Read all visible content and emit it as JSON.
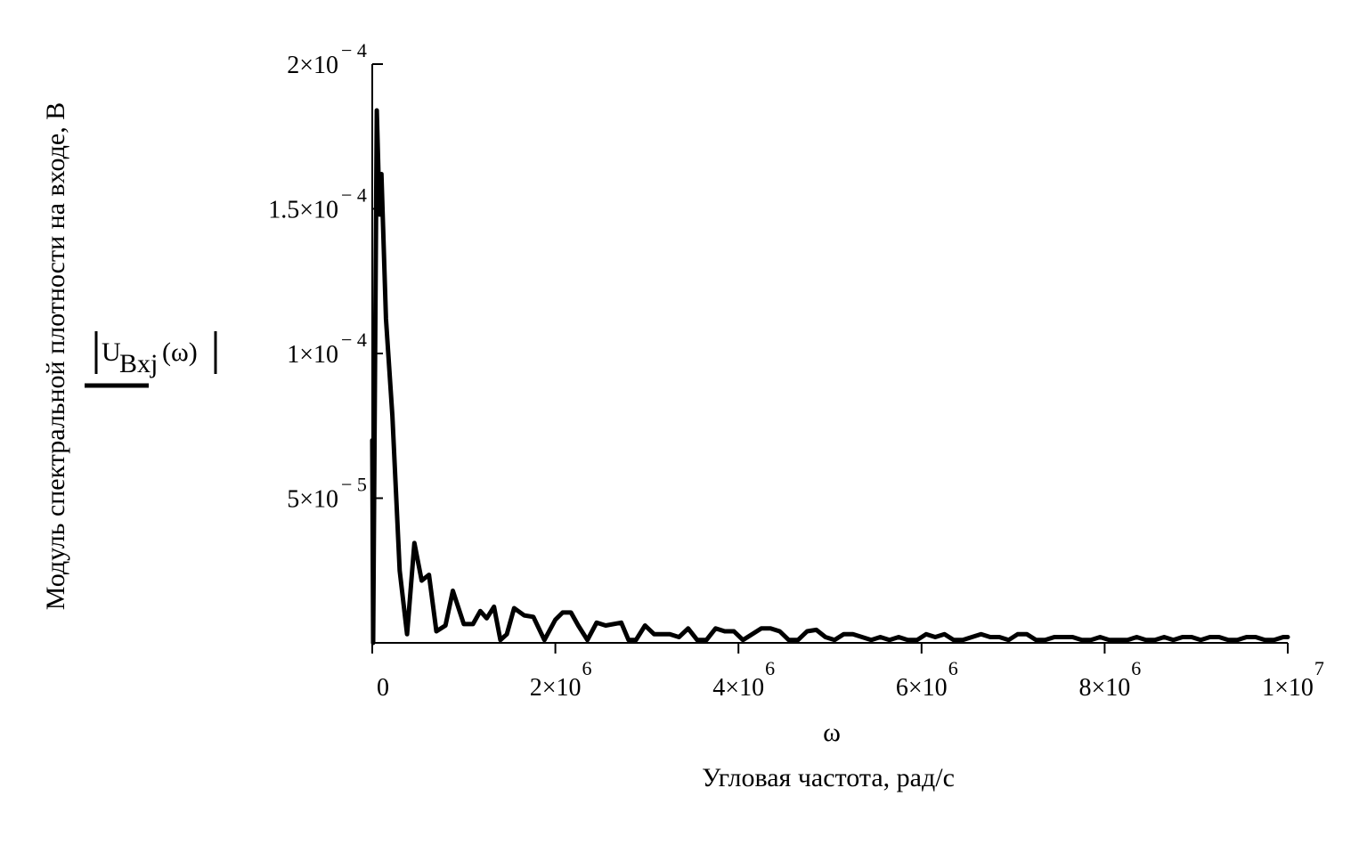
{
  "chart_data": {
    "type": "line",
    "title": "",
    "xlabel": "Угловая частота, рад/с",
    "x_symbol": "ω",
    "ylabel": "Модуль спектральной плотности на входе, В",
    "y_expression": {
      "base": "U",
      "subscript": "Bxj",
      "argument": "(ω)"
    },
    "xlim": [
      0,
      10000000
    ],
    "ylim": [
      0,
      0.0002
    ],
    "grid": false,
    "legend": "none",
    "line_color": "#000000",
    "x_ticks": [
      {
        "value": 0,
        "mantissa": "0",
        "exponent": ""
      },
      {
        "value": 2000000,
        "mantissa": "2×10",
        "exponent": "6"
      },
      {
        "value": 4000000,
        "mantissa": "4×10",
        "exponent": "6"
      },
      {
        "value": 6000000,
        "mantissa": "6×10",
        "exponent": "6"
      },
      {
        "value": 8000000,
        "mantissa": "8×10",
        "exponent": "6"
      },
      {
        "value": 10000000,
        "mantissa": "1×10",
        "exponent": "7"
      }
    ],
    "y_ticks": [
      {
        "value": 5e-05,
        "mantissa": "5×10",
        "exponent": "− 5"
      },
      {
        "value": 0.0001,
        "mantissa": "1×10",
        "exponent": "− 4"
      },
      {
        "value": 0.00015,
        "mantissa": "1.5×10",
        "exponent": "− 4"
      },
      {
        "value": 0.0002,
        "mantissa": "2×10",
        "exponent": "− 4"
      }
    ],
    "series": [
      {
        "x": [
          0,
          10000,
          50000,
          80000,
          100000,
          150000,
          220000,
          300000,
          380000,
          460000,
          540000,
          620000,
          700000,
          800000,
          880000,
          1000000,
          1100000,
          1180000,
          1250000,
          1330000,
          1400000,
          1470000,
          1550000,
          1660000,
          1760000,
          1880000,
          2000000,
          2080000,
          2170000,
          2250000,
          2350000,
          2450000,
          2550000,
          2720000,
          2800000,
          2880000,
          2980000,
          3080000,
          3150000,
          3250000,
          3350000,
          3450000,
          3550000,
          3650000,
          3750000,
          3850000,
          3950000,
          4050000,
          4150000,
          4250000,
          4350000,
          4450000,
          4550000,
          4650000,
          4750000,
          4850000,
          4950000,
          5050000,
          5150000,
          5250000,
          5350000,
          5450000,
          5550000,
          5650000,
          5750000,
          5850000,
          5950000,
          6050000,
          6150000,
          6250000,
          6350000,
          6450000,
          6550000,
          6650000,
          6750000,
          6850000,
          6950000,
          7050000,
          7150000,
          7250000,
          7350000,
          7450000,
          7550000,
          7650000,
          7750000,
          7850000,
          7950000,
          8050000,
          8150000,
          8250000,
          8350000,
          8450000,
          8550000,
          8650000,
          8750000,
          8850000,
          8950000,
          9050000,
          9150000,
          9250000,
          9350000,
          9450000,
          9550000,
          9650000,
          9750000,
          9850000,
          9950000,
          10000000
        ],
        "y": [
          7e-05,
          0.0,
          0.000184,
          0.000148,
          0.000162,
          0.000112,
          7.85e-05,
          2.5e-05,
          3e-06,
          3.45e-05,
          2.15e-05,
          2.35e-05,
          4e-06,
          6e-06,
          1.8e-05,
          6.5e-06,
          6.5e-06,
          1.1e-05,
          8.5e-06,
          1.25e-05,
          1e-06,
          3e-06,
          1.2e-05,
          9.5e-06,
          9e-06,
          1e-06,
          8e-06,
          1.05e-05,
          1.05e-05,
          6e-06,
          1e-06,
          7e-06,
          6e-06,
          7e-06,
          1e-06,
          1e-06,
          6e-06,
          3e-06,
          3e-06,
          3e-06,
          2e-06,
          5e-06,
          1e-06,
          1e-06,
          5e-06,
          4e-06,
          4e-06,
          1e-06,
          3e-06,
          5e-06,
          5e-06,
          4e-06,
          1e-06,
          1e-06,
          4e-06,
          4.5e-06,
          2e-06,
          1e-06,
          3e-06,
          3e-06,
          2e-06,
          1e-06,
          2e-06,
          1e-06,
          2e-06,
          1e-06,
          1e-06,
          3e-06,
          2e-06,
          3e-06,
          1e-06,
          1e-06,
          2e-06,
          3e-06,
          2e-06,
          2e-06,
          1e-06,
          3e-06,
          3e-06,
          1e-06,
          1e-06,
          2e-06,
          2e-06,
          2e-06,
          1e-06,
          1e-06,
          2e-06,
          1e-06,
          1e-06,
          1e-06,
          2e-06,
          1e-06,
          1e-06,
          2e-06,
          1e-06,
          2e-06,
          2e-06,
          1e-06,
          2e-06,
          2e-06,
          1e-06,
          1e-06,
          2e-06,
          2e-06,
          1e-06,
          1e-06,
          2e-06,
          2e-06
        ]
      }
    ]
  }
}
